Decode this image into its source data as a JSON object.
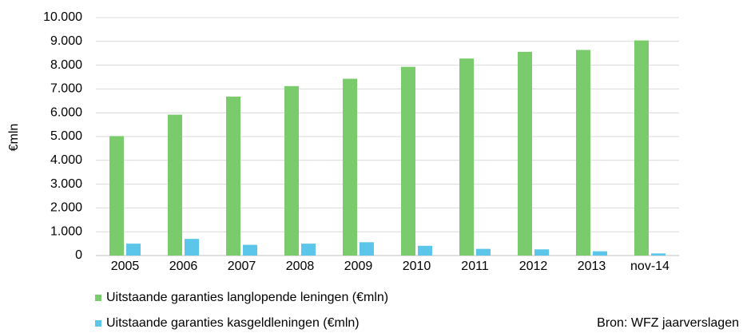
{
  "chart_data": {
    "type": "bar",
    "y_label": "€mln",
    "source": "Bron: WFZ jaarverslagen",
    "categories": [
      "2005",
      "2006",
      "2007",
      "2008",
      "2009",
      "2010",
      "2011",
      "2012",
      "2013",
      "nov-14"
    ],
    "series": [
      {
        "name": "Uitstaande garanties langlopende leningen (€mln)",
        "color": "#7acb6c",
        "values": [
          5020,
          5920,
          6680,
          7120,
          7430,
          7930,
          8280,
          8560,
          8640,
          9040
        ]
      },
      {
        "name": "Uitstaande garanties kasgeldleningen (€mln)",
        "color": "#5bc6ea",
        "values": [
          500,
          700,
          450,
          500,
          560,
          410,
          280,
          260,
          180,
          90
        ]
      }
    ],
    "ylim": [
      0,
      10000
    ],
    "yticks": [
      0,
      {
        "value": 1000,
        "label": "1.000"
      },
      {
        "value": 2000,
        "label": "2.000"
      },
      {
        "value": 3000,
        "label": "3.000"
      },
      {
        "value": 4000,
        "label": "4.000"
      },
      {
        "value": 5000,
        "label": "5.000"
      },
      {
        "value": 6000,
        "label": "6.000"
      },
      {
        "value": 7000,
        "label": "7.000"
      },
      {
        "value": 8000,
        "label": "8.000"
      },
      {
        "value": 9000,
        "label": "9.000"
      },
      {
        "value": 10000,
        "label": "10.000"
      }
    ],
    "grid": true,
    "legend": "bottom"
  }
}
